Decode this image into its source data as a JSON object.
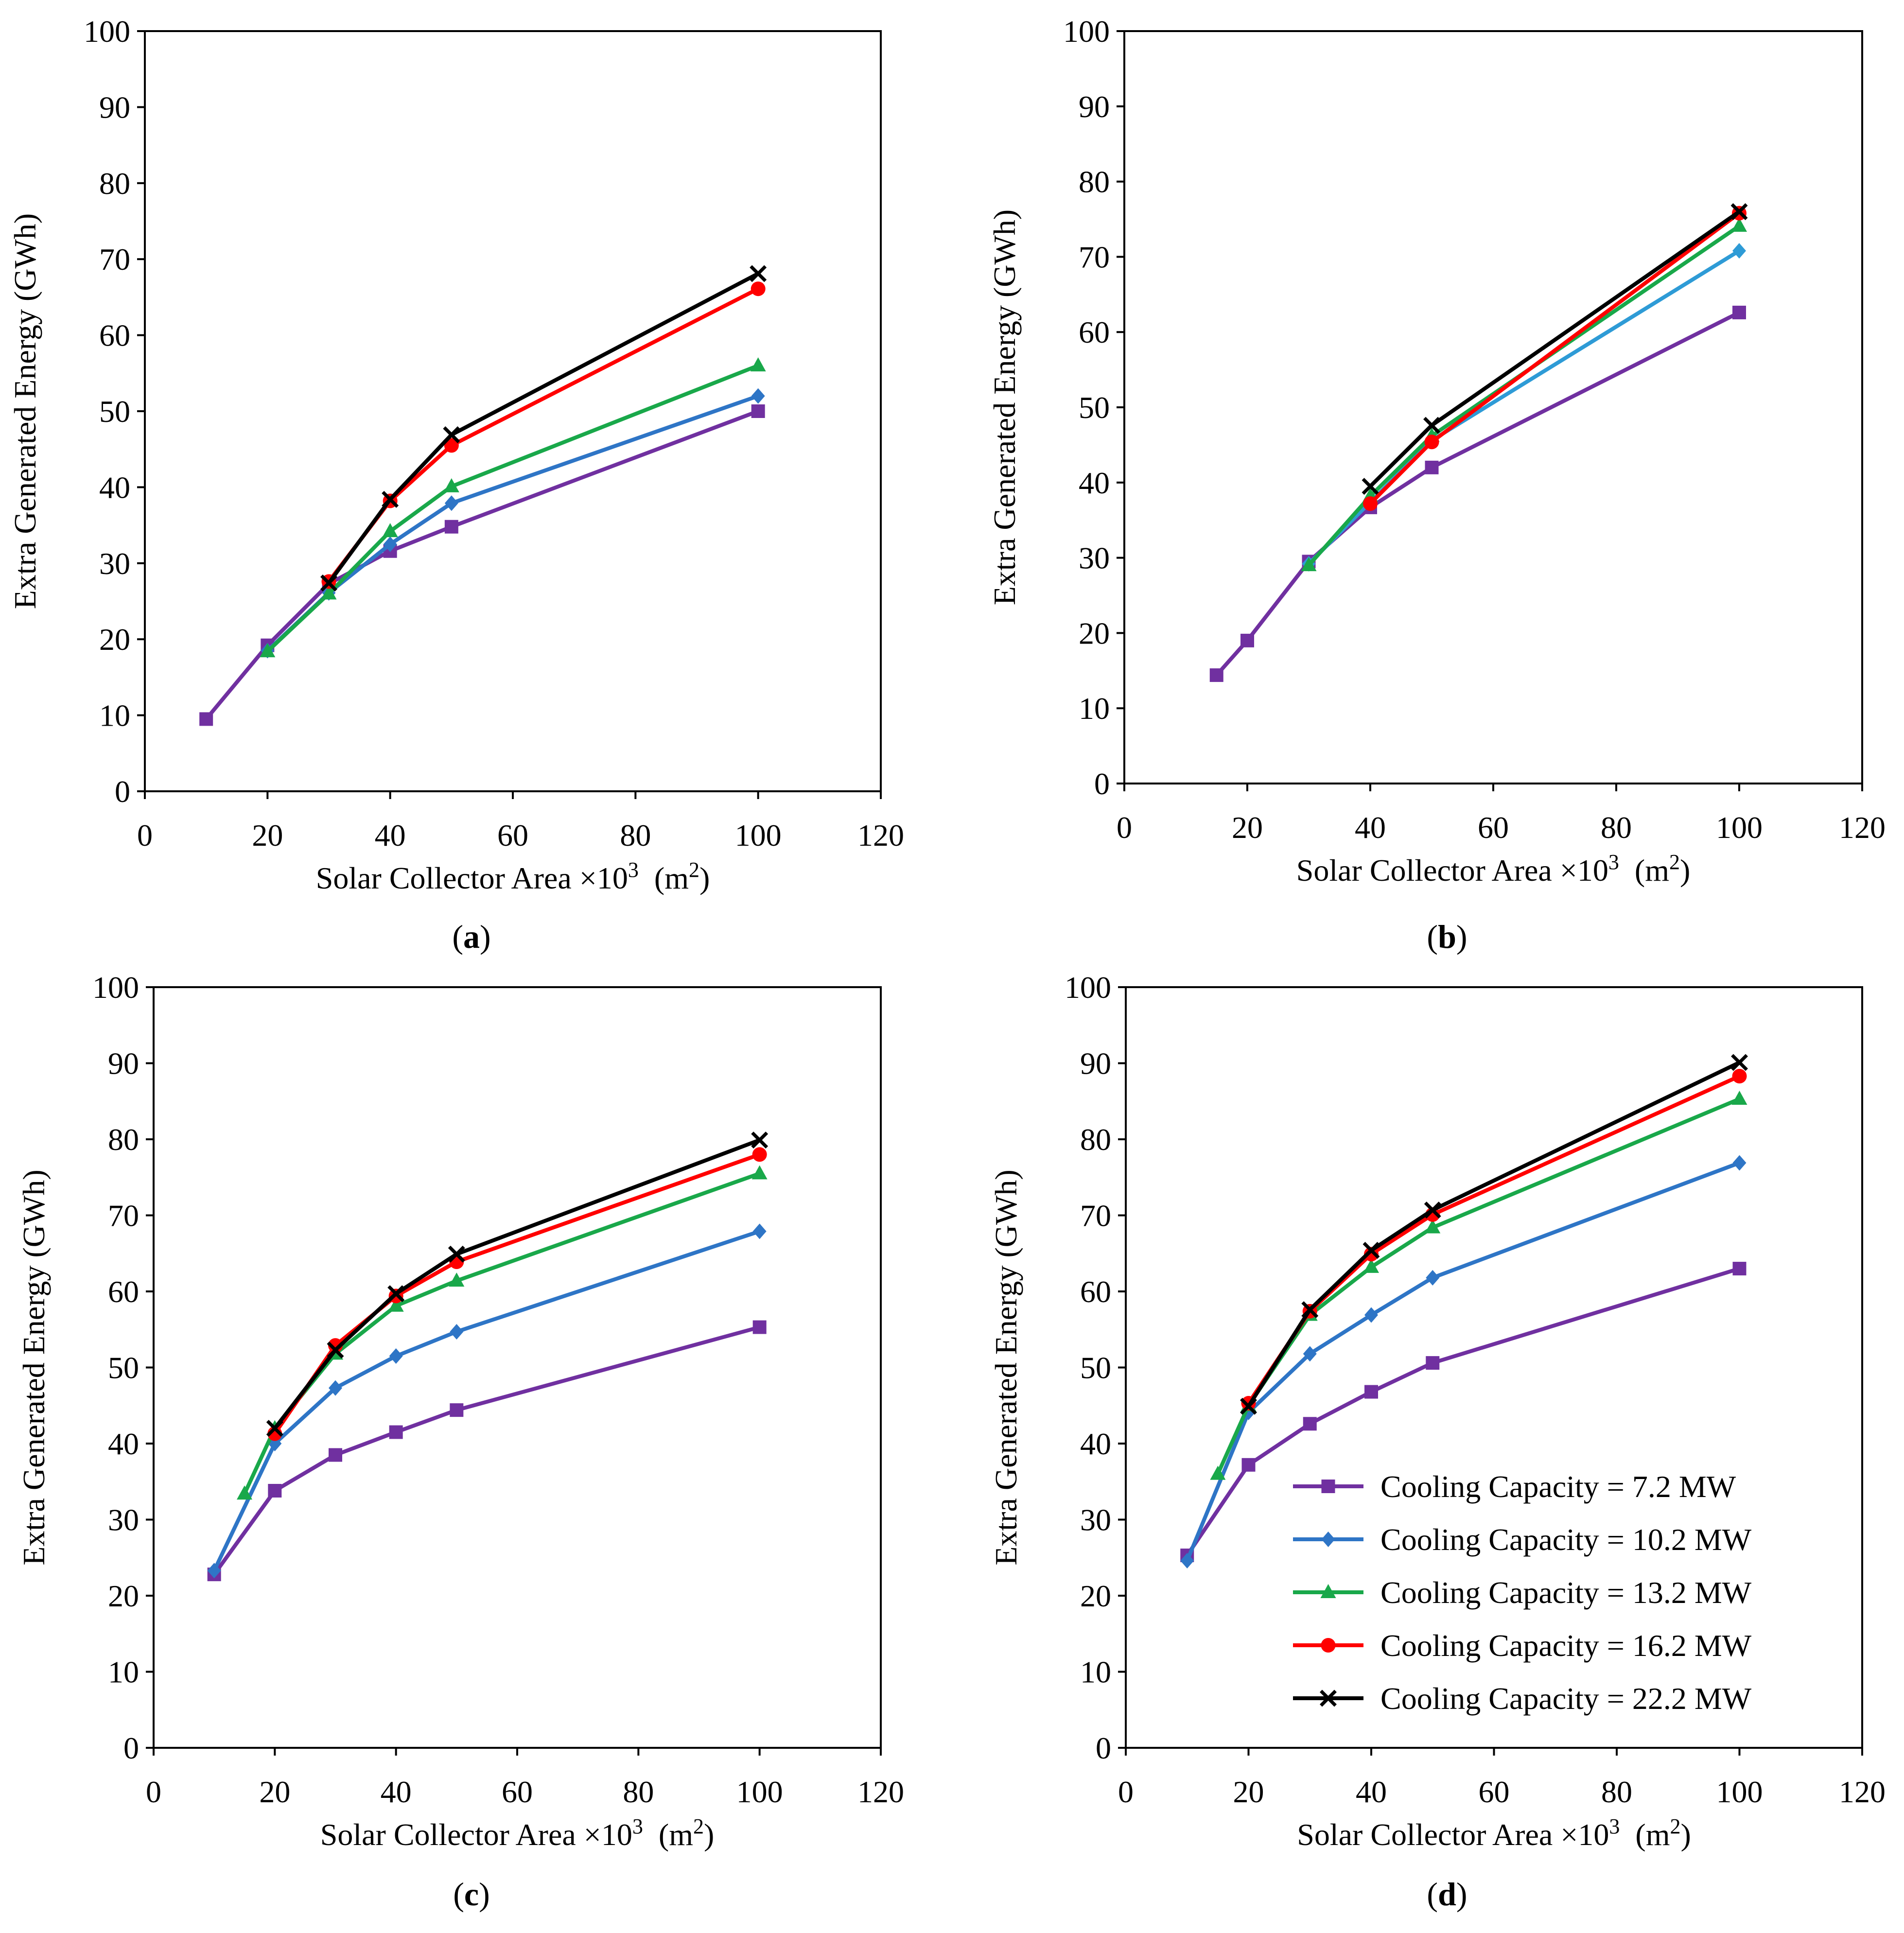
{
  "chart_data": [
    {
      "type": "line",
      "panel_label": "a",
      "xlabel": "Solar Collector Area ×10",
      "xlabel_sup": "3",
      "xlabel_unit_prefix": "(m",
      "xlabel_unit_sup": "2",
      "xlabel_unit_suffix": ")",
      "ylabel": "Extra Generated Energy (GWh)",
      "xlim": [
        0,
        120
      ],
      "ylim": [
        0,
        100
      ],
      "xticks": [
        0,
        20,
        40,
        60,
        80,
        100,
        120
      ],
      "yticks": [
        0,
        10,
        20,
        30,
        40,
        50,
        60,
        70,
        80,
        90,
        100
      ],
      "grid": false,
      "series": [
        {
          "name": "Cooling Capacity = 7.2 MW",
          "color": "#7030a0",
          "marker": "square",
          "x": [
            10,
            20,
            30,
            40,
            50,
            100
          ],
          "y": [
            9.5,
            19.2,
            27.3,
            31.6,
            34.8,
            50.0
          ]
        },
        {
          "name": "Cooling Capacity = 10.2 MW",
          "color": "#2e75c6",
          "marker": "diamond",
          "x": [
            20,
            30,
            40,
            50,
            100
          ],
          "y": [
            18.5,
            26.1,
            32.5,
            37.9,
            52.0
          ]
        },
        {
          "name": "Cooling Capacity = 13.2 MW",
          "color": "#19a84a",
          "marker": "triangle",
          "x": [
            20,
            30,
            40,
            50,
            100
          ],
          "y": [
            18.4,
            26.0,
            34.2,
            40.1,
            56.0
          ]
        },
        {
          "name": "Cooling Capacity = 16.2 MW",
          "color": "#ff0000",
          "marker": "circle",
          "x": [
            30,
            40,
            50,
            100
          ],
          "y": [
            27.6,
            38.2,
            45.5,
            66.1
          ]
        },
        {
          "name": "Cooling Capacity = 22.2 MW",
          "color": "#000000",
          "marker": "x",
          "x": [
            30,
            40,
            50,
            100
          ],
          "y": [
            27.4,
            38.4,
            46.9,
            68.1
          ]
        }
      ]
    },
    {
      "type": "line",
      "panel_label": "b",
      "xlabel": "Solar Collector Area ×10",
      "xlabel_sup": "3",
      "xlabel_unit_prefix": "(m",
      "xlabel_unit_sup": "2",
      "xlabel_unit_suffix": ")",
      "ylabel": "Extra Generated Energy (GWh)",
      "xlim": [
        0,
        120
      ],
      "ylim": [
        0,
        100
      ],
      "xticks": [
        0,
        20,
        40,
        60,
        80,
        100,
        120
      ],
      "yticks": [
        0,
        10,
        20,
        30,
        40,
        50,
        60,
        70,
        80,
        90,
        100
      ],
      "grid": false,
      "series": [
        {
          "name": "Cooling Capacity = 7.2 MW",
          "color": "#7030a0",
          "marker": "square",
          "x": [
            15,
            20,
            30,
            40,
            50,
            100
          ],
          "y": [
            14.4,
            19.0,
            29.5,
            36.7,
            42.0,
            62.6
          ]
        },
        {
          "name": "Cooling Capacity = 10.2 MW",
          "color": "#2e9bd6",
          "marker": "diamond",
          "x": [
            30,
            40,
            50,
            100
          ],
          "y": [
            29.2,
            37.4,
            45.6,
            70.8
          ]
        },
        {
          "name": "Cooling Capacity = 13.2 MW",
          "color": "#19a84a",
          "marker": "triangle",
          "x": [
            30,
            40,
            50,
            100
          ],
          "y": [
            29.0,
            38.2,
            46.2,
            74.1
          ]
        },
        {
          "name": "Cooling Capacity = 16.2 MW",
          "color": "#ff0000",
          "marker": "circle",
          "x": [
            40,
            50,
            100
          ],
          "y": [
            37.2,
            45.4,
            75.8
          ]
        },
        {
          "name": "Cooling Capacity = 22.2 MW",
          "color": "#000000",
          "marker": "x",
          "x": [
            40,
            50,
            100
          ],
          "y": [
            39.5,
            47.6,
            76.0
          ]
        }
      ]
    },
    {
      "type": "line",
      "panel_label": "c",
      "xlabel": "Solar Collector Area ×10",
      "xlabel_sup": "3",
      "xlabel_unit_prefix": "(m",
      "xlabel_unit_sup": "2",
      "xlabel_unit_suffix": ")",
      "ylabel": "Extra Generated Energy (GWh)",
      "xlim": [
        0,
        120
      ],
      "ylim": [
        0,
        100
      ],
      "xticks": [
        0,
        20,
        40,
        60,
        80,
        100,
        120
      ],
      "yticks": [
        0,
        10,
        20,
        30,
        40,
        50,
        60,
        70,
        80,
        90,
        100
      ],
      "grid": false,
      "series": [
        {
          "name": "Cooling Capacity = 7.2 MW",
          "color": "#7030a0",
          "marker": "square",
          "x": [
            10,
            20,
            30,
            40,
            50,
            100
          ],
          "y": [
            22.8,
            33.8,
            38.5,
            41.5,
            44.4,
            55.3
          ]
        },
        {
          "name": "Cooling Capacity = 10.2 MW",
          "color": "#2e75c6",
          "marker": "diamond",
          "x": [
            10,
            20,
            30,
            40,
            50,
            100
          ],
          "y": [
            23.3,
            40.0,
            47.3,
            51.5,
            54.7,
            67.9
          ]
        },
        {
          "name": "Cooling Capacity = 13.2 MW",
          "color": "#19a84a",
          "marker": "triangle",
          "x": [
            15,
            20,
            30,
            40,
            50,
            100
          ],
          "y": [
            33.4,
            42.0,
            51.8,
            58.1,
            61.4,
            75.5
          ]
        },
        {
          "name": "Cooling Capacity = 16.2 MW",
          "color": "#ff0000",
          "marker": "circle",
          "x": [
            20,
            30,
            40,
            50,
            100
          ],
          "y": [
            41.3,
            52.9,
            59.4,
            63.9,
            78.0
          ]
        },
        {
          "name": "Cooling Capacity = 22.2 MW",
          "color": "#000000",
          "marker": "x",
          "x": [
            20,
            30,
            40,
            50,
            100
          ],
          "y": [
            42.0,
            52.3,
            59.7,
            64.9,
            79.9
          ]
        }
      ]
    },
    {
      "type": "line",
      "panel_label": "d",
      "xlabel": "Solar Collector Area ×10",
      "xlabel_sup": "3",
      "xlabel_unit_prefix": "(m",
      "xlabel_unit_sup": "2",
      "xlabel_unit_suffix": ")",
      "ylabel": "Extra Generated Energy (GWh)",
      "xlim": [
        0,
        120
      ],
      "ylim": [
        0,
        100
      ],
      "xticks": [
        0,
        20,
        40,
        60,
        80,
        100,
        120
      ],
      "yticks": [
        0,
        10,
        20,
        30,
        40,
        50,
        60,
        70,
        80,
        90,
        100
      ],
      "grid": false,
      "legend": "lower-right",
      "series": [
        {
          "name": "Cooling Capacity = 7.2 MW",
          "color": "#7030a0",
          "marker": "square",
          "x": [
            10,
            20,
            30,
            40,
            50,
            100
          ],
          "y": [
            25.3,
            37.2,
            42.6,
            46.8,
            50.6,
            63.0
          ]
        },
        {
          "name": "Cooling Capacity = 10.2 MW",
          "color": "#2e75c6",
          "marker": "diamond",
          "x": [
            10,
            20,
            30,
            40,
            50,
            100
          ],
          "y": [
            24.6,
            44.1,
            51.8,
            56.9,
            61.8,
            76.9
          ]
        },
        {
          "name": "Cooling Capacity = 13.2 MW",
          "color": "#19a84a",
          "marker": "triangle",
          "x": [
            15,
            20,
            30,
            40,
            50,
            100
          ],
          "y": [
            36.0,
            45.0,
            56.9,
            63.2,
            68.4,
            85.3
          ]
        },
        {
          "name": "Cooling Capacity = 16.2 MW",
          "color": "#ff0000",
          "marker": "circle",
          "x": [
            20,
            30,
            40,
            50,
            100
          ],
          "y": [
            45.3,
            57.4,
            64.9,
            70.1,
            88.3
          ]
        },
        {
          "name": "Cooling Capacity = 22.2 MW",
          "color": "#000000",
          "marker": "x",
          "x": [
            20,
            30,
            40,
            50,
            100
          ],
          "y": [
            44.9,
            57.6,
            65.4,
            70.7,
            90.1
          ]
        }
      ]
    }
  ]
}
